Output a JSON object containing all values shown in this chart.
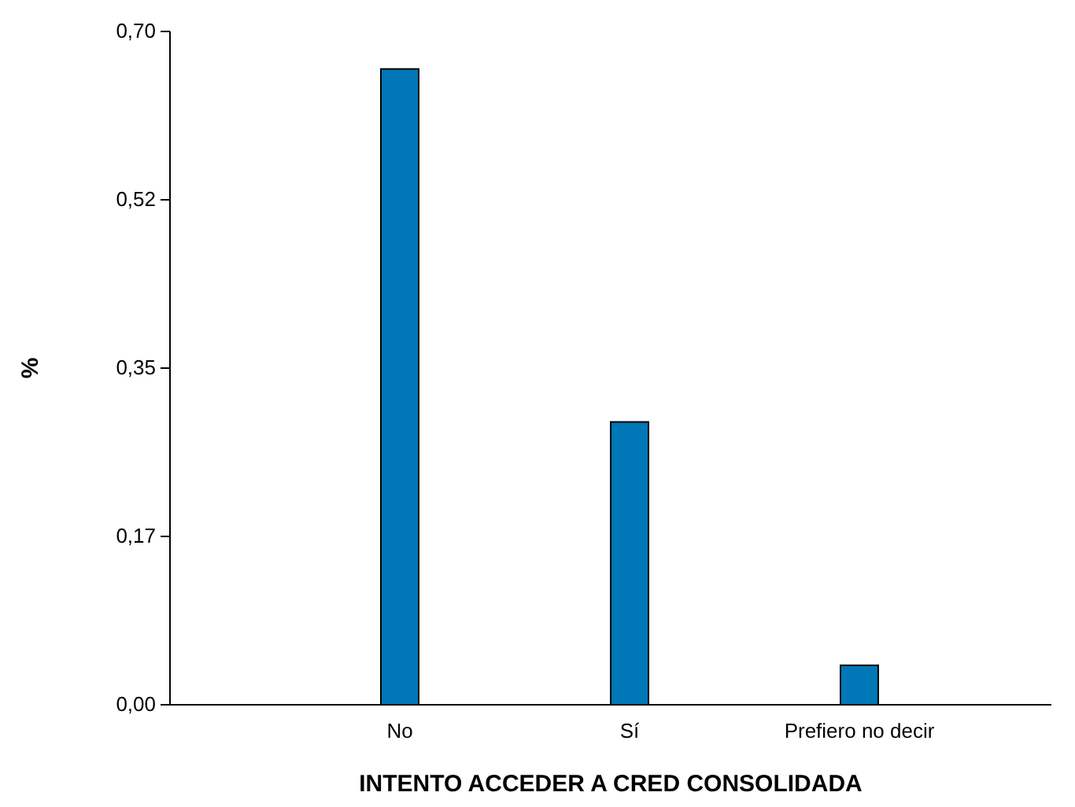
{
  "chart_data": {
    "type": "bar",
    "xlabel": "INTENTO ACCEDER A CRED CONSOLIDADA",
    "ylabel": "%",
    "categories": [
      "No",
      "Sí",
      "Prefiero no decir"
    ],
    "values": [
      0.661,
      0.294,
      0.041
    ],
    "color": "#0077b6",
    "ylim": [
      0,
      0.7
    ],
    "yticks": [
      {
        "value": 0,
        "label": "0,00"
      },
      {
        "value": 0.175,
        "label": "0,17"
      },
      {
        "value": 0.35,
        "label": "0,35"
      },
      {
        "value": 0.525,
        "label": "0,52"
      },
      {
        "value": 0.7,
        "label": "0,70"
      }
    ],
    "grid": false
  }
}
